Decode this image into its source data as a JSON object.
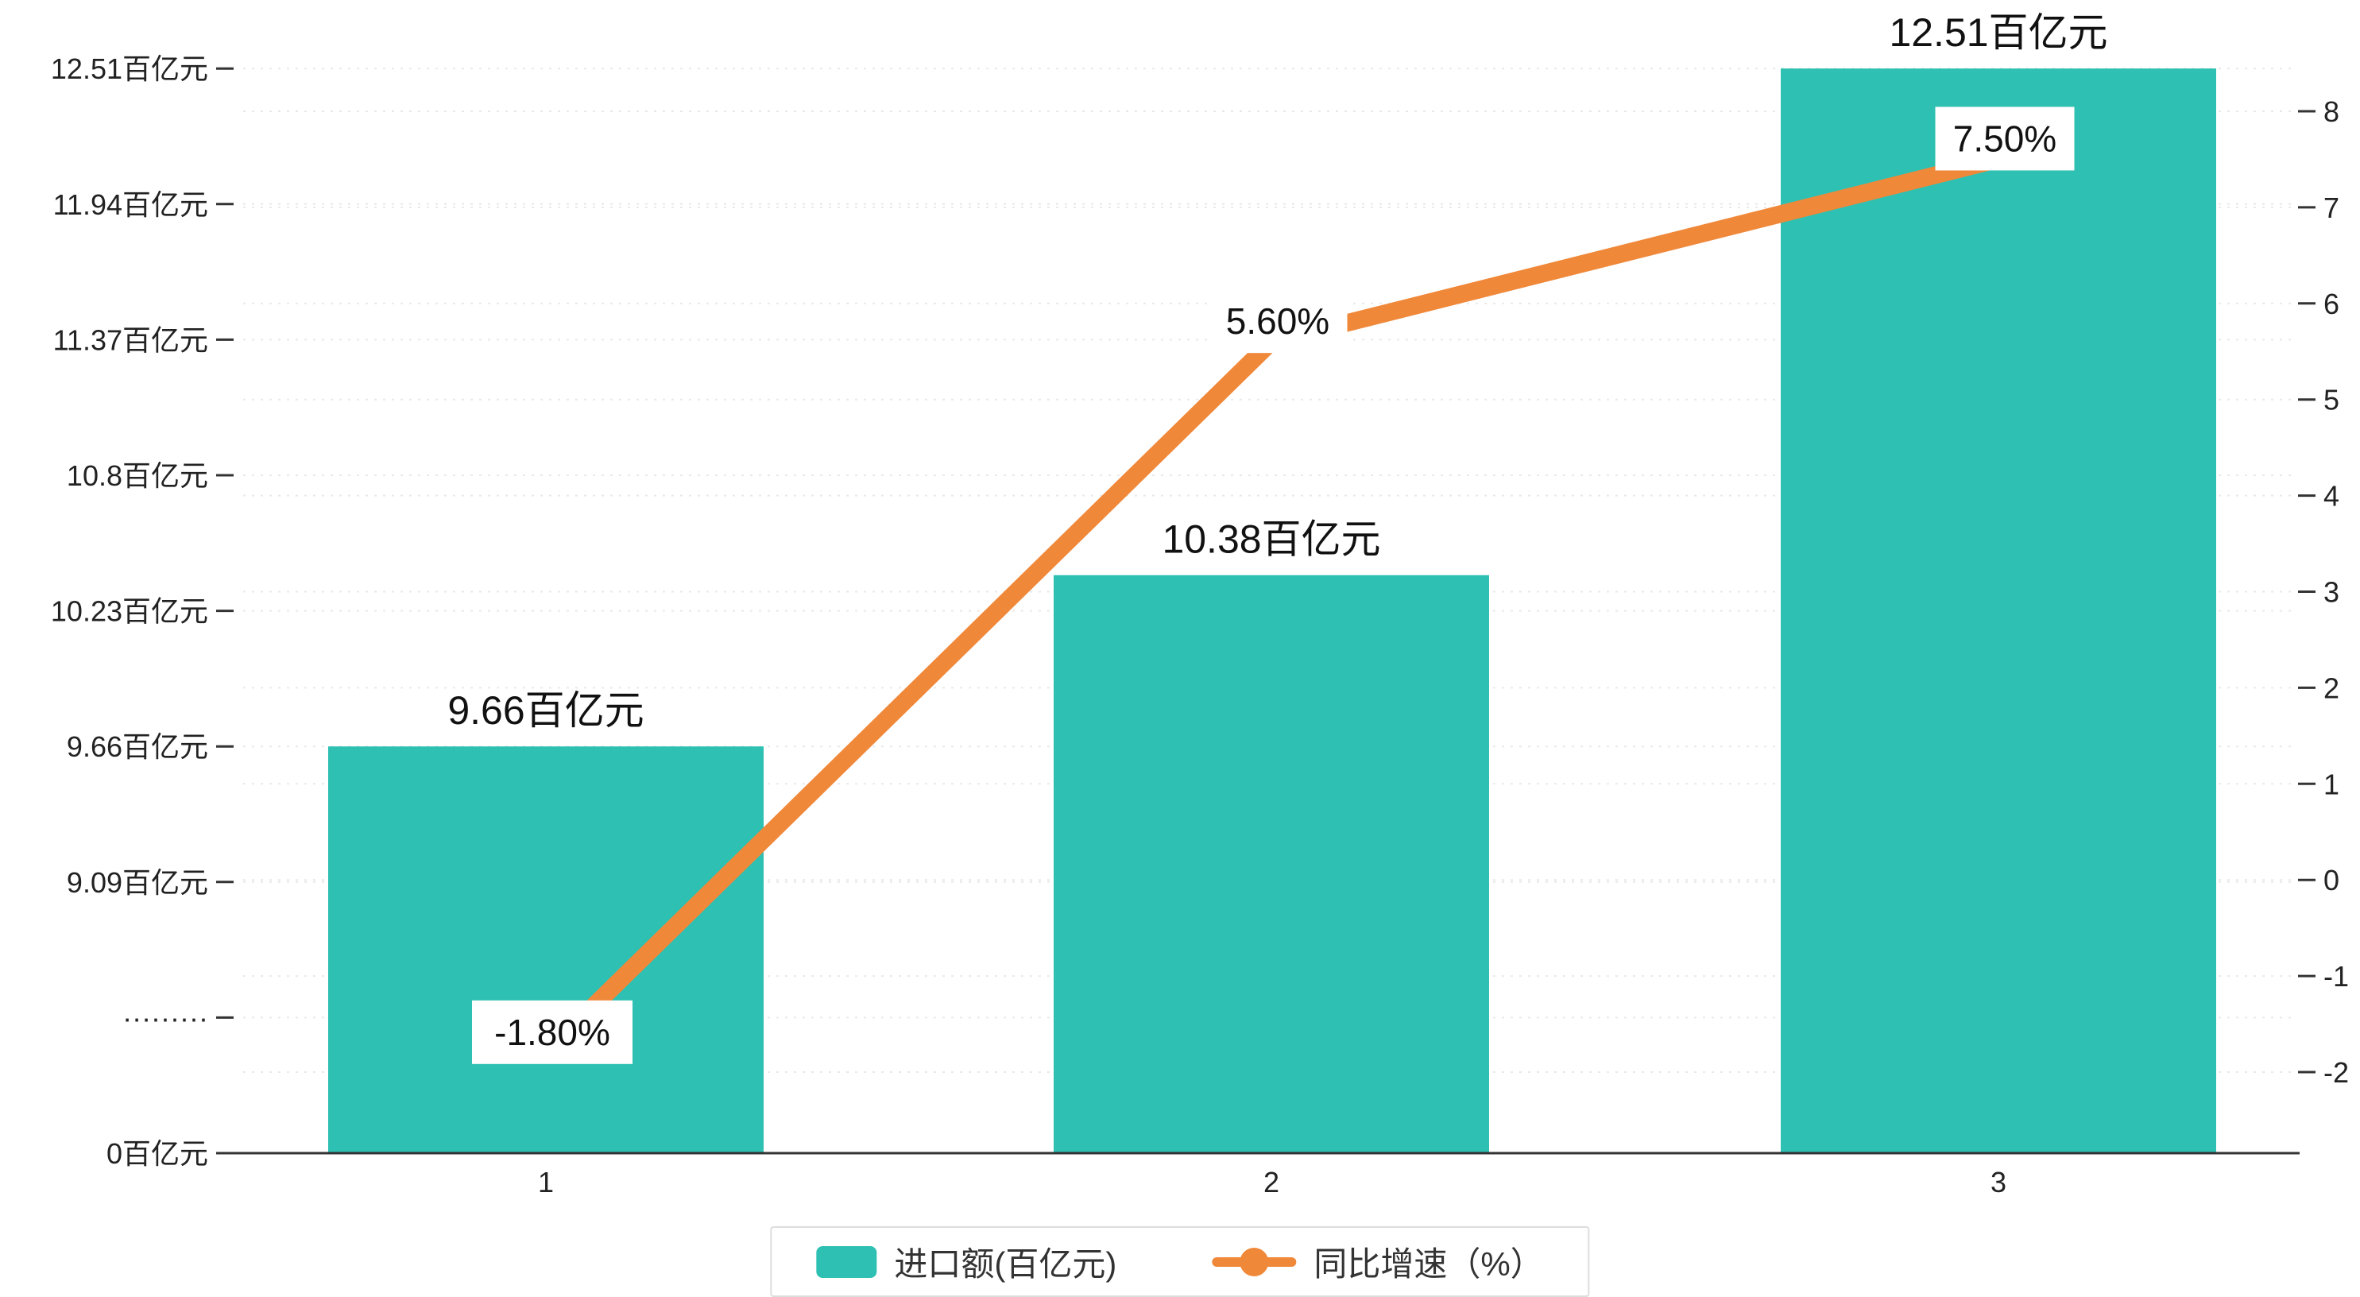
{
  "chart_data": {
    "type": "combo",
    "title": "",
    "categories": [
      "1",
      "2",
      "3"
    ],
    "series": [
      {
        "name": "进口额(百亿元)",
        "type": "bar",
        "values": [
          9.66,
          10.38,
          12.51
        ],
        "labels": [
          "9.66百亿元",
          "10.38百亿元",
          "12.51百亿元"
        ],
        "color": "#2ec0b2"
      },
      {
        "name": "同比增速（%）",
        "type": "line",
        "values": [
          -1.8,
          5.6,
          7.5
        ],
        "labels": [
          "-1.80%",
          "5.60%",
          "7.50%"
        ],
        "color": "#f0883a"
      }
    ],
    "left_axis": {
      "ticks_bottom_to_top": [
        "0百亿元",
        "·········",
        "9.09百亿元",
        "9.66百亿元",
        "10.23百亿元",
        "10.8百亿元",
        "11.37百亿元",
        "11.94百亿元",
        "12.51百亿元"
      ],
      "break_value": 8.52,
      "unit_per_tick": 0.57
    },
    "right_axis": {
      "min": -2,
      "max": 8,
      "step": 1,
      "ticks_bottom_to_top": [
        "-2",
        "-1",
        "0",
        "1",
        "2",
        "3",
        "4",
        "5",
        "6",
        "7",
        "8"
      ]
    },
    "legend": {
      "position": "bottom",
      "entries": [
        {
          "label": "进口额(百亿元)",
          "marker": "bar"
        },
        {
          "label": "同比增速（%）",
          "marker": "line"
        }
      ]
    },
    "grid": true,
    "text_color": "#222222",
    "axis_color": "#333333",
    "gridline_color": "#e9e9e9"
  }
}
